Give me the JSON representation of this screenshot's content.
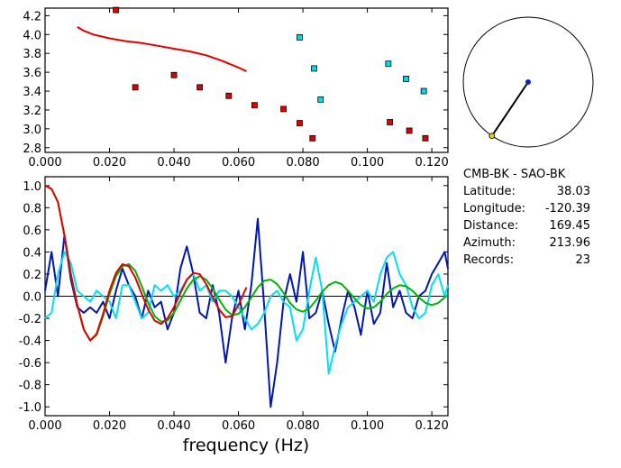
{
  "chart_data": [
    {
      "type": "scatter",
      "xlim": [
        0.0,
        0.125
      ],
      "ylim": [
        2.75,
        4.28
      ],
      "x_ticks": [
        "0.000",
        "0.020",
        "0.040",
        "0.060",
        "0.080",
        "0.100",
        "0.120"
      ],
      "y_ticks": [
        "2.8",
        "3.0",
        "3.2",
        "3.4",
        "3.6",
        "3.8",
        "4.0",
        "4.2"
      ],
      "series": [
        {
          "kind": "line",
          "color": "#e00000",
          "x": [
            0.01,
            0.012,
            0.015,
            0.02,
            0.025,
            0.03,
            0.035,
            0.04,
            0.045,
            0.05,
            0.055,
            0.06,
            0.0625
          ],
          "y": [
            4.08,
            4.04,
            4.0,
            3.96,
            3.93,
            3.91,
            3.88,
            3.85,
            3.82,
            3.78,
            3.72,
            3.65,
            3.61
          ]
        },
        {
          "kind": "markers",
          "color": "#e00000",
          "x": [
            0.022,
            0.028,
            0.04,
            0.048,
            0.057,
            0.065,
            0.074,
            0.079,
            0.083,
            0.107,
            0.113,
            0.118
          ],
          "y": [
            4.26,
            3.44,
            3.57,
            3.44,
            3.35,
            3.25,
            3.21,
            3.06,
            2.9,
            3.07,
            2.98,
            2.9
          ]
        },
        {
          "kind": "markers",
          "color": "#00d8e8",
          "x": [
            0.079,
            0.0835,
            0.0855,
            0.1065,
            0.112,
            0.1175
          ],
          "y": [
            3.97,
            3.64,
            3.31,
            3.69,
            3.53,
            3.4
          ]
        }
      ]
    },
    {
      "type": "line",
      "xlim": [
        0.0,
        0.125
      ],
      "ylim": [
        -1.08,
        1.08
      ],
      "xlabel": "frequency (Hz)",
      "x_ticks": [
        "0.000",
        "0.020",
        "0.040",
        "0.060",
        "0.080",
        "0.100",
        "0.120"
      ],
      "y_ticks": [
        "-1.0",
        "-0.8",
        "-0.6",
        "-0.4",
        "-0.2",
        "0.0",
        "0.2",
        "0.4",
        "0.6",
        "0.8",
        "1.0"
      ],
      "series": [
        {
          "color": "#0018b0",
          "x": [
            0.0,
            0.002,
            0.004,
            0.006,
            0.008,
            0.01,
            0.012,
            0.014,
            0.016,
            0.018,
            0.02,
            0.022,
            0.024,
            0.026,
            0.028,
            0.03,
            0.032,
            0.034,
            0.036,
            0.038,
            0.04,
            0.042,
            0.044,
            0.046,
            0.048,
            0.05,
            0.052,
            0.054,
            0.056,
            0.058,
            0.06,
            0.062,
            0.064,
            0.066,
            0.068,
            0.07,
            0.072,
            0.074,
            0.076,
            0.078,
            0.08,
            0.082,
            0.084,
            0.086,
            0.088,
            0.09,
            0.092,
            0.094,
            0.096,
            0.098,
            0.1,
            0.102,
            0.104,
            0.106,
            0.108,
            0.11,
            0.112,
            0.114,
            0.116,
            0.118,
            0.12,
            0.122,
            0.124,
            0.125
          ],
          "y": [
            0.05,
            0.4,
            0.0,
            0.55,
            0.15,
            -0.1,
            -0.15,
            -0.1,
            -0.15,
            -0.05,
            -0.2,
            0.05,
            0.25,
            0.1,
            0.0,
            -0.2,
            0.05,
            -0.1,
            -0.05,
            -0.3,
            -0.15,
            0.25,
            0.45,
            0.2,
            -0.15,
            -0.2,
            0.1,
            -0.15,
            -0.6,
            -0.2,
            0.05,
            -0.3,
            0.1,
            0.7,
            -0.1,
            -1.0,
            -0.6,
            -0.05,
            0.2,
            -0.05,
            0.4,
            -0.2,
            -0.15,
            0.05,
            -0.25,
            -0.5,
            -0.2,
            0.05,
            -0.1,
            -0.35,
            0.05,
            -0.25,
            -0.15,
            0.3,
            -0.1,
            0.05,
            -0.15,
            -0.2,
            0.0,
            0.05,
            0.2,
            0.3,
            0.4,
            0.25
          ]
        },
        {
          "color": "#00e0f0",
          "x": [
            0.0,
            0.002,
            0.004,
            0.006,
            0.008,
            0.01,
            0.012,
            0.014,
            0.016,
            0.018,
            0.02,
            0.022,
            0.024,
            0.026,
            0.028,
            0.03,
            0.032,
            0.034,
            0.036,
            0.038,
            0.04,
            0.042,
            0.044,
            0.046,
            0.048,
            0.05,
            0.052,
            0.054,
            0.056,
            0.058,
            0.06,
            0.062,
            0.064,
            0.066,
            0.068,
            0.07,
            0.072,
            0.074,
            0.076,
            0.078,
            0.08,
            0.082,
            0.084,
            0.086,
            0.088,
            0.09,
            0.092,
            0.094,
            0.096,
            0.098,
            0.1,
            0.102,
            0.104,
            0.106,
            0.108,
            0.11,
            0.112,
            0.114,
            0.116,
            0.118,
            0.12,
            0.122,
            0.124,
            0.125
          ],
          "y": [
            -0.2,
            -0.15,
            0.2,
            0.4,
            0.3,
            0.05,
            0.0,
            -0.05,
            0.05,
            0.0,
            -0.05,
            -0.2,
            0.1,
            0.1,
            -0.05,
            -0.2,
            -0.15,
            0.1,
            0.05,
            0.1,
            0.0,
            0.05,
            0.15,
            0.2,
            0.05,
            0.1,
            -0.05,
            0.05,
            0.05,
            0.0,
            -0.1,
            -0.2,
            -0.3,
            -0.25,
            -0.15,
            0.0,
            0.05,
            -0.05,
            -0.1,
            -0.4,
            -0.3,
            0.05,
            0.35,
            0.05,
            -0.7,
            -0.45,
            -0.25,
            -0.1,
            -0.05,
            0.0,
            0.05,
            -0.05,
            0.2,
            0.35,
            0.4,
            0.2,
            0.1,
            -0.1,
            -0.2,
            -0.15,
            0.1,
            0.2,
            0.0,
            0.1
          ]
        },
        {
          "color": "#00b400",
          "x": [
            0.0,
            0.002,
            0.004,
            0.006,
            0.008,
            0.01,
            0.012,
            0.014,
            0.016,
            0.018,
            0.02,
            0.022,
            0.024,
            0.026,
            0.028,
            0.03,
            0.032,
            0.034,
            0.036,
            0.038,
            0.04,
            0.042,
            0.044,
            0.046,
            0.048,
            0.05,
            0.052,
            0.054,
            0.056,
            0.058,
            0.06,
            0.062,
            0.064,
            0.066,
            0.068,
            0.07,
            0.072,
            0.074,
            0.076,
            0.078,
            0.08,
            0.082,
            0.084,
            0.086,
            0.088,
            0.09,
            0.092,
            0.094,
            0.096,
            0.098,
            0.1,
            0.102,
            0.104,
            0.106,
            0.108,
            0.11,
            0.112,
            0.114,
            0.116,
            0.118,
            0.12,
            0.122,
            0.124,
            0.125
          ],
          "y": [
            1.0,
            0.97,
            0.85,
            0.55,
            0.2,
            -0.08,
            -0.3,
            -0.4,
            -0.35,
            -0.18,
            0.02,
            0.18,
            0.27,
            0.29,
            0.23,
            0.09,
            -0.06,
            -0.18,
            -0.23,
            -0.22,
            -0.15,
            -0.04,
            0.07,
            0.15,
            0.18,
            0.15,
            0.07,
            -0.03,
            -0.12,
            -0.17,
            -0.16,
            -0.1,
            -0.01,
            0.08,
            0.14,
            0.15,
            0.11,
            0.03,
            -0.06,
            -0.12,
            -0.14,
            -0.11,
            -0.04,
            0.04,
            0.1,
            0.13,
            0.11,
            0.05,
            -0.02,
            -0.08,
            -0.11,
            -0.1,
            -0.05,
            0.02,
            0.07,
            0.1,
            0.09,
            0.05,
            -0.01,
            -0.06,
            -0.08,
            -0.06,
            -0.01,
            0.01
          ]
        },
        {
          "color": "#e00000",
          "x": [
            0.0,
            0.002,
            0.004,
            0.006,
            0.008,
            0.01,
            0.012,
            0.014,
            0.016,
            0.018,
            0.02,
            0.022,
            0.024,
            0.026,
            0.028,
            0.03,
            0.032,
            0.034,
            0.036,
            0.038,
            0.04,
            0.042,
            0.044,
            0.046,
            0.048,
            0.05,
            0.052,
            0.054,
            0.056,
            0.058,
            0.06,
            0.062,
            0.0625
          ],
          "y": [
            1.0,
            0.97,
            0.85,
            0.55,
            0.2,
            -0.08,
            -0.3,
            -0.4,
            -0.34,
            -0.16,
            0.05,
            0.21,
            0.29,
            0.27,
            0.17,
            0.02,
            -0.12,
            -0.22,
            -0.25,
            -0.2,
            -0.1,
            0.03,
            0.15,
            0.21,
            0.2,
            0.11,
            -0.01,
            -0.12,
            -0.19,
            -0.18,
            -0.08,
            0.05,
            0.08
          ]
        }
      ]
    }
  ],
  "station": {
    "pair": "CMB-BK  -  SAO-BK",
    "rows": [
      {
        "label": "Latitude:",
        "value": "38.03"
      },
      {
        "label": "Longitude:",
        "value": "-120.39"
      },
      {
        "label": "Distance:",
        "value": "169.45"
      },
      {
        "label": "Azimuth:",
        "value": "213.96"
      },
      {
        "label": "Records:",
        "value": "23"
      }
    ]
  },
  "map_inset": {
    "azimuth_deg": 213.96,
    "ray_fraction": 1.0,
    "center_color": "#1020c0",
    "end_color": "#d8d800"
  }
}
